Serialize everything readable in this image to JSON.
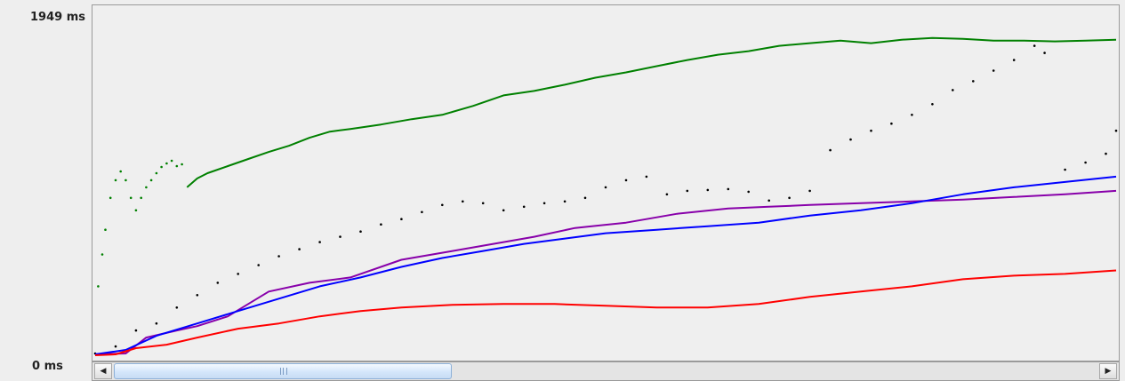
{
  "axis": {
    "y_max_label": "1949 ms",
    "y_min_label": "0 ms"
  },
  "scrollbar": {
    "left_icon": "arrow-left-icon",
    "left_glyph": "◀",
    "right_icon": "arrow-right-icon",
    "right_glyph": "▶",
    "thumb_fraction": 0.33
  },
  "chart_data": {
    "type": "line",
    "title": "",
    "xlabel": "",
    "ylabel": "",
    "ylim": [
      0,
      1949
    ],
    "xlim": [
      0,
      100
    ],
    "grid": false,
    "legend": "none",
    "series": [
      {
        "color": "#008000",
        "style": "line",
        "points": [
          [
            9,
            960
          ],
          [
            10,
            1010
          ],
          [
            11,
            1040
          ],
          [
            13,
            1080
          ],
          [
            15,
            1120
          ],
          [
            17,
            1160
          ],
          [
            19,
            1195
          ],
          [
            21,
            1240
          ],
          [
            23,
            1275
          ],
          [
            25,
            1290
          ],
          [
            28,
            1315
          ],
          [
            31,
            1345
          ],
          [
            34,
            1370
          ],
          [
            37,
            1420
          ],
          [
            40,
            1480
          ],
          [
            43,
            1505
          ],
          [
            46,
            1540
          ],
          [
            49,
            1580
          ],
          [
            52,
            1610
          ],
          [
            55,
            1645
          ],
          [
            58,
            1680
          ],
          [
            61,
            1710
          ],
          [
            64,
            1730
          ],
          [
            67,
            1760
          ],
          [
            70,
            1775
          ],
          [
            73,
            1790
          ],
          [
            76,
            1775
          ],
          [
            79,
            1795
          ],
          [
            82,
            1805
          ],
          [
            85,
            1800
          ],
          [
            88,
            1790
          ],
          [
            91,
            1790
          ],
          [
            94,
            1785
          ],
          [
            97,
            1790
          ],
          [
            100,
            1795
          ]
        ]
      },
      {
        "color": "#008000",
        "style": "dots",
        "points": [
          [
            0.3,
            400
          ],
          [
            0.7,
            580
          ],
          [
            1,
            720
          ],
          [
            1.5,
            900
          ],
          [
            2,
            1000
          ],
          [
            2.5,
            1050
          ],
          [
            3,
            1000
          ],
          [
            3.5,
            900
          ],
          [
            4,
            830
          ],
          [
            4.5,
            900
          ],
          [
            5,
            960
          ],
          [
            5.5,
            1000
          ],
          [
            6,
            1040
          ],
          [
            6.5,
            1075
          ],
          [
            7,
            1095
          ],
          [
            7.5,
            1110
          ],
          [
            8,
            1080
          ],
          [
            8.5,
            1090
          ]
        ]
      },
      {
        "color": "#000000",
        "style": "dots",
        "points": [
          [
            0,
            20
          ],
          [
            2,
            60
          ],
          [
            4,
            150
          ],
          [
            6,
            190
          ],
          [
            8,
            280
          ],
          [
            10,
            350
          ],
          [
            12,
            420
          ],
          [
            14,
            470
          ],
          [
            16,
            520
          ],
          [
            18,
            570
          ],
          [
            20,
            610
          ],
          [
            22,
            650
          ],
          [
            24,
            680
          ],
          [
            26,
            710
          ],
          [
            28,
            750
          ],
          [
            30,
            780
          ],
          [
            32,
            820
          ],
          [
            34,
            860
          ],
          [
            36,
            880
          ],
          [
            38,
            870
          ],
          [
            40,
            830
          ],
          [
            42,
            850
          ],
          [
            44,
            870
          ],
          [
            46,
            880
          ],
          [
            48,
            900
          ],
          [
            50,
            960
          ],
          [
            52,
            1000
          ],
          [
            54,
            1020
          ],
          [
            56,
            920
          ],
          [
            58,
            940
          ],
          [
            60,
            945
          ],
          [
            62,
            950
          ],
          [
            64,
            935
          ],
          [
            66,
            885
          ],
          [
            68,
            900
          ],
          [
            70,
            940
          ],
          [
            72,
            1170
          ],
          [
            74,
            1230
          ],
          [
            76,
            1280
          ],
          [
            78,
            1320
          ],
          [
            80,
            1370
          ],
          [
            82,
            1430
          ],
          [
            84,
            1510
          ],
          [
            86,
            1560
          ],
          [
            88,
            1620
          ],
          [
            90,
            1680
          ],
          [
            92,
            1760
          ],
          [
            93,
            1720
          ],
          [
            95,
            1060
          ],
          [
            97,
            1100
          ],
          [
            99,
            1150
          ],
          [
            100,
            1280
          ]
        ]
      },
      {
        "color": "#8800aa",
        "style": "line",
        "points": [
          [
            0,
            15
          ],
          [
            3,
            20
          ],
          [
            5,
            110
          ],
          [
            8,
            150
          ],
          [
            10,
            175
          ],
          [
            13,
            230
          ],
          [
            17,
            370
          ],
          [
            21,
            420
          ],
          [
            25,
            450
          ],
          [
            30,
            550
          ],
          [
            35,
            600
          ],
          [
            39,
            640
          ],
          [
            43,
            680
          ],
          [
            47,
            730
          ],
          [
            52,
            760
          ],
          [
            57,
            810
          ],
          [
            62,
            840
          ],
          [
            66,
            850
          ],
          [
            70,
            860
          ],
          [
            75,
            870
          ],
          [
            80,
            880
          ],
          [
            85,
            890
          ],
          [
            90,
            905
          ],
          [
            95,
            920
          ],
          [
            100,
            940
          ]
        ]
      },
      {
        "color": "#0000ff",
        "style": "line",
        "points": [
          [
            0,
            15
          ],
          [
            3,
            40
          ],
          [
            6,
            120
          ],
          [
            10,
            190
          ],
          [
            14,
            260
          ],
          [
            18,
            330
          ],
          [
            22,
            400
          ],
          [
            26,
            450
          ],
          [
            30,
            510
          ],
          [
            34,
            560
          ],
          [
            38,
            600
          ],
          [
            42,
            640
          ],
          [
            46,
            670
          ],
          [
            50,
            700
          ],
          [
            55,
            720
          ],
          [
            60,
            740
          ],
          [
            65,
            760
          ],
          [
            70,
            800
          ],
          [
            75,
            830
          ],
          [
            80,
            870
          ],
          [
            85,
            920
          ],
          [
            90,
            960
          ],
          [
            95,
            990
          ],
          [
            100,
            1020
          ]
        ]
      },
      {
        "color": "#ff0000",
        "style": "line",
        "points": [
          [
            0,
            10
          ],
          [
            2,
            15
          ],
          [
            4,
            50
          ],
          [
            7,
            70
          ],
          [
            10,
            110
          ],
          [
            14,
            160
          ],
          [
            18,
            190
          ],
          [
            22,
            230
          ],
          [
            26,
            260
          ],
          [
            30,
            280
          ],
          [
            35,
            295
          ],
          [
            40,
            300
          ],
          [
            45,
            300
          ],
          [
            50,
            290
          ],
          [
            55,
            280
          ],
          [
            60,
            280
          ],
          [
            65,
            300
          ],
          [
            70,
            340
          ],
          [
            75,
            370
          ],
          [
            80,
            400
          ],
          [
            85,
            440
          ],
          [
            90,
            460
          ],
          [
            95,
            470
          ],
          [
            100,
            490
          ]
        ]
      }
    ]
  }
}
